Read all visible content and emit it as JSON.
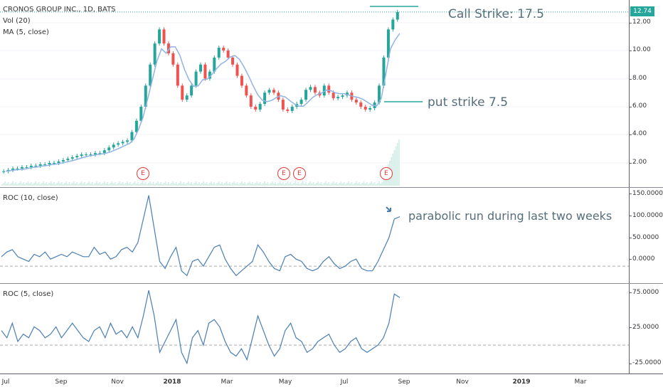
{
  "chart": {
    "symbol_line": "CRONOS GROUP INC., 1D, BATS",
    "volume_label": "Vol (20)",
    "ma_label": "MA (5, close)",
    "last_price": "12.74",
    "call_strike_text": "Call Strike: 17.5",
    "put_strike_text": "put strike 7.5",
    "parabolic_text": "parabolic run during last two weeks",
    "earnings_marker": "E",
    "up_color": "#26a69a",
    "down_color": "#ef5350",
    "ma_color": "#90b4e3",
    "roc_color": "#4a7eb3"
  },
  "panes": {
    "price_ticks": [
      "12.00",
      "10.00",
      "8.00",
      "6.00",
      "4.00",
      "2.00"
    ],
    "roc10_label": "ROC (10, close)",
    "roc10_ticks": [
      "150.0000",
      "100.0000",
      "50.0000",
      "0.0000"
    ],
    "roc5_label": "ROC (5, close)",
    "roc5_ticks": [
      "75.0000",
      "25.0000",
      "-25.0000"
    ]
  },
  "xaxis": {
    "labels": [
      "Jul",
      "Sep",
      "Nov",
      "2018",
      "Mar",
      "May",
      "Jul",
      "Sep",
      "Nov",
      "2019",
      "Mar"
    ]
  },
  "chart_data": {
    "type": "candlestick",
    "price_close_series": [
      1.4,
      1.5,
      1.6,
      1.6,
      1.7,
      1.7,
      1.8,
      1.8,
      1.9,
      1.9,
      2.0,
      2.0,
      2.1,
      2.2,
      2.3,
      2.4,
      2.5,
      2.6,
      2.6,
      2.6,
      2.7,
      2.7,
      2.9,
      3.1,
      3.3,
      3.4,
      3.5,
      3.6,
      4.2,
      5.0,
      6.0,
      7.5,
      9.0,
      10.5,
      11.5,
      10.5,
      9.8,
      9.0,
      7.5,
      6.5,
      6.8,
      7.5,
      8.5,
      9.0,
      8.0,
      8.5,
      9.5,
      10.2,
      10.0,
      9.5,
      9.0,
      8.2,
      7.5,
      6.8,
      6.0,
      5.8,
      6.2,
      7.0,
      7.2,
      7.0,
      6.5,
      5.8,
      5.7,
      6.0,
      6.2,
      6.5,
      7.2,
      7.4,
      7.0,
      6.8,
      7.5,
      7.0,
      6.6,
      6.7,
      6.8,
      7.0,
      6.5,
      6.3,
      6.0,
      5.8,
      5.9,
      6.3,
      7.5,
      9.5,
      11.5,
      12.2,
      12.74
    ],
    "ma_period": 5,
    "roc10_series": [
      20,
      30,
      35,
      20,
      15,
      10,
      25,
      20,
      30,
      15,
      20,
      25,
      20,
      30,
      25,
      20,
      20,
      40,
      25,
      30,
      15,
      20,
      35,
      40,
      30,
      50,
      100,
      150,
      80,
      10,
      -5,
      20,
      40,
      -10,
      -20,
      10,
      15,
      0,
      20,
      40,
      45,
      15,
      -5,
      -20,
      -10,
      0,
      10,
      45,
      30,
      10,
      -5,
      -10,
      20,
      25,
      15,
      10,
      -5,
      -10,
      -5,
      10,
      20,
      5,
      -5,
      0,
      10,
      15,
      -5,
      -10,
      -10,
      10,
      35,
      60,
      100,
      105
    ],
    "roc5_series": [
      20,
      10,
      30,
      5,
      15,
      10,
      25,
      20,
      10,
      15,
      25,
      10,
      20,
      30,
      20,
      10,
      5,
      20,
      25,
      10,
      30,
      15,
      20,
      10,
      25,
      10,
      40,
      75,
      40,
      -10,
      5,
      20,
      35,
      -10,
      -25,
      10,
      20,
      0,
      30,
      35,
      25,
      5,
      -10,
      -15,
      -5,
      -20,
      10,
      40,
      20,
      0,
      -15,
      -5,
      20,
      30,
      10,
      5,
      -10,
      -5,
      5,
      10,
      15,
      0,
      -10,
      -5,
      5,
      10,
      -5,
      -10,
      -5,
      0,
      10,
      30,
      70,
      65
    ],
    "roc10_ylim": [
      -30,
      160
    ],
    "roc5_ylim": [
      -35,
      80
    ],
    "price_ylim": [
      1,
      13
    ]
  }
}
